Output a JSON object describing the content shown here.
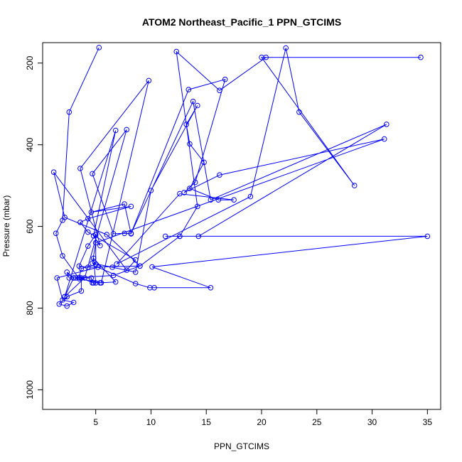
{
  "chart_data": {
    "type": "scatter",
    "title": "ATOM2 Northeast_Pacific_1 PPN_GTCIMS",
    "xlabel": "PPN_GTCIMS",
    "ylabel": "Pressure (mbar)",
    "xlim": [
      0.2,
      36.2
    ],
    "ylim": [
      1048,
      150
    ],
    "y_reversed": true,
    "xticks": [
      5,
      10,
      15,
      20,
      25,
      30,
      35
    ],
    "yticks": [
      200,
      400,
      600,
      800,
      1000
    ],
    "grid": false,
    "color": "#0000ff",
    "series": [
      {
        "points": [
          [
            5.3,
            162
          ],
          [
            2.6,
            320
          ],
          [
            2.0,
            585
          ],
          [
            1.4,
            617
          ],
          [
            2.0,
            672
          ],
          [
            3.5,
            728
          ],
          [
            5.5,
            738
          ],
          [
            9.8,
            243
          ],
          [
            3.6,
            458
          ],
          [
            5.4,
            647
          ],
          [
            4.8,
            623
          ],
          [
            6.8,
            365
          ],
          [
            2.2,
            772
          ],
          [
            4.0,
            726
          ],
          [
            7.8,
            363
          ],
          [
            4.7,
            471
          ],
          [
            6.6,
            618
          ],
          [
            7.6,
            617
          ],
          [
            8.2,
            618
          ],
          [
            7.6,
            545
          ],
          [
            4.6,
            565
          ],
          [
            8.2,
            551
          ],
          [
            4.3,
            581
          ],
          [
            3.6,
            590
          ],
          [
            4.3,
            614
          ],
          [
            8.6,
            682
          ],
          [
            7.8,
            707
          ],
          [
            1.2,
            467
          ],
          [
            2.2,
            578
          ],
          [
            6.0,
            620
          ],
          [
            9.0,
            697
          ],
          [
            4.3,
            700
          ],
          [
            3.5,
            697
          ],
          [
            4.3,
            648
          ],
          [
            5.0,
            620
          ],
          [
            5.0,
            693
          ],
          [
            3.7,
            703
          ],
          [
            3.5,
            725
          ],
          [
            4.8,
            738
          ],
          [
            5.0,
            738
          ],
          [
            4.8,
            678
          ],
          [
            6.8,
            736
          ],
          [
            5.4,
            738
          ],
          [
            4.7,
            738
          ],
          [
            4.6,
            726
          ],
          [
            3.0,
            726
          ],
          [
            2.4,
            712
          ],
          [
            2.6,
            726
          ],
          [
            3.2,
            726
          ],
          [
            3.7,
            726
          ],
          [
            3.7,
            758
          ],
          [
            2.4,
            772
          ],
          [
            1.7,
            790
          ],
          [
            2.4,
            795
          ],
          [
            3.0,
            786
          ],
          [
            2.0,
            780
          ],
          [
            1.5,
            726
          ],
          [
            5.2,
            700
          ],
          [
            8.6,
            740
          ],
          [
            9.9,
            750
          ],
          [
            10.3,
            750
          ],
          [
            15.4,
            750
          ],
          [
            10.1,
            699
          ],
          [
            35.0,
            624
          ],
          [
            11.3,
            624
          ],
          [
            12.6,
            624
          ],
          [
            14.3,
            624
          ],
          [
            31.3,
            350
          ],
          [
            15.4,
            535
          ],
          [
            13.8,
            294
          ],
          [
            8.2,
            617
          ],
          [
            13.4,
            265
          ],
          [
            16.7,
            240
          ],
          [
            14.0,
            492
          ],
          [
            13.0,
            517
          ],
          [
            16.2,
            474
          ],
          [
            31.1,
            386
          ],
          [
            5.0,
            640
          ],
          [
            4.7,
            690
          ],
          [
            6.5,
            700
          ],
          [
            8.6,
            712
          ],
          [
            10.0,
            512
          ],
          [
            14.2,
            304
          ],
          [
            13.2,
            350
          ],
          [
            13.5,
            398
          ],
          [
            14.8,
            443
          ],
          [
            13.5,
            507
          ],
          [
            16.1,
            535
          ],
          [
            17.5,
            535
          ],
          [
            12.6,
            520
          ],
          [
            6.9,
            692
          ],
          [
            19.0,
            527
          ],
          [
            22.2,
            163
          ],
          [
            23.4,
            320
          ],
          [
            28.4,
            500
          ],
          [
            20.0,
            186
          ],
          [
            34.4,
            186
          ],
          [
            20.4,
            186
          ],
          [
            16.2,
            267
          ],
          [
            12.3,
            172
          ],
          [
            14.2,
            551
          ],
          [
            12.6,
            624
          ],
          [
            9.0,
            697
          ],
          [
            6.6,
            720
          ],
          [
            3.0,
            726
          ],
          [
            2.2,
            772
          ]
        ]
      }
    ]
  }
}
